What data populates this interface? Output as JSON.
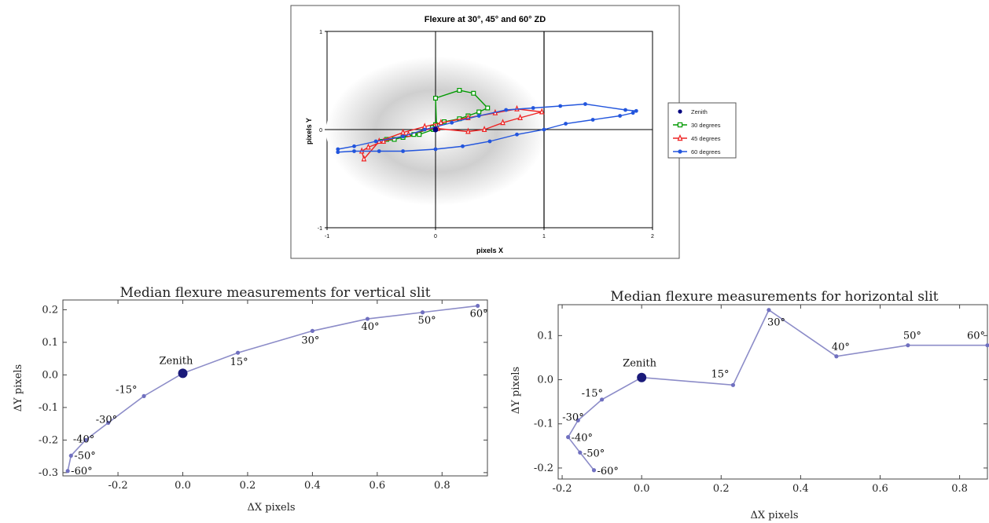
{
  "chart_data": [
    {
      "type": "line",
      "title": "Flexure at 30°, 45° and 60° ZD",
      "xlabel": "pixels X",
      "ylabel": "pixels Y",
      "xlim": [
        -1,
        2
      ],
      "ylim": [
        -1,
        1
      ],
      "xticks": [
        "-1",
        "0",
        "1",
        "2"
      ],
      "yticks": [
        "-1",
        "0",
        "1"
      ],
      "legend_position": "right",
      "series": [
        {
          "name": "Zenith",
          "color": "#00007f",
          "marker": "circle",
          "x": [
            0.0
          ],
          "y": [
            0.0
          ]
        },
        {
          "name": "30 degrees",
          "color": "#009900",
          "marker": "square",
          "x": [
            -0.02,
            -0.15,
            -0.3,
            -0.45,
            -0.5,
            -0.38,
            -0.2,
            -0.03,
            0.0,
            0.08,
            0.22,
            0.3,
            0.4,
            0.48,
            0.35,
            0.22,
            0.0,
            0.01
          ],
          "y": [
            0.0,
            -0.05,
            -0.08,
            -0.1,
            -0.12,
            -0.1,
            -0.05,
            0.02,
            0.05,
            0.08,
            0.11,
            0.14,
            0.18,
            0.22,
            0.37,
            0.4,
            0.32,
            0.01
          ]
        },
        {
          "name": "45 degrees",
          "color": "#ee2222",
          "marker": "triangle",
          "x": [
            0.0,
            -0.25,
            -0.48,
            -0.62,
            -0.68,
            -0.66,
            -0.52,
            -0.3,
            -0.1,
            0.05,
            0.3,
            0.55,
            0.75,
            0.98,
            0.78,
            0.62,
            0.45,
            0.3,
            0.02
          ],
          "y": [
            0.02,
            -0.05,
            -0.12,
            -0.18,
            -0.22,
            -0.3,
            -0.12,
            -0.03,
            0.03,
            0.07,
            0.12,
            0.17,
            0.21,
            0.18,
            0.12,
            0.07,
            0.0,
            -0.02,
            0.01
          ]
        },
        {
          "name": "60 degrees",
          "color": "#2255dd",
          "marker": "circle",
          "x": [
            -0.9,
            -0.75,
            -0.52,
            -0.3,
            0.0,
            0.25,
            0.5,
            0.75,
            1.0,
            1.2,
            1.45,
            1.7,
            1.82,
            1.85,
            1.75,
            1.38,
            1.15,
            0.9,
            0.65,
            0.4,
            0.15,
            -0.1,
            -0.3,
            -0.55,
            -0.75,
            -0.9
          ],
          "y": [
            -0.23,
            -0.22,
            -0.22,
            -0.22,
            -0.2,
            -0.17,
            -0.12,
            -0.05,
            0.0,
            0.06,
            0.1,
            0.14,
            0.17,
            0.19,
            0.2,
            0.26,
            0.24,
            0.22,
            0.2,
            0.14,
            0.07,
            0.0,
            -0.07,
            -0.12,
            -0.17,
            -0.2
          ]
        }
      ]
    },
    {
      "type": "line",
      "title": "Median flexure measurements for vertical slit",
      "xlabel": "ΔX pixels",
      "ylabel": "ΔY pixels",
      "xlim": [
        -0.37,
        0.94
      ],
      "ylim": [
        -0.31,
        0.23
      ],
      "xticks": [
        "-0.2",
        "0.0",
        "0.2",
        "0.4",
        "0.6",
        "0.8"
      ],
      "yticks": [
        "-0.3",
        "-0.2",
        "-0.1",
        "0.0",
        "0.1",
        "0.2"
      ],
      "points": [
        {
          "label": "-60°",
          "x": -0.355,
          "y": -0.295
        },
        {
          "label": "-50°",
          "x": -0.345,
          "y": -0.248
        },
        {
          "label": "-40°",
          "x": -0.3,
          "y": -0.2
        },
        {
          "label": "-30°",
          "x": -0.23,
          "y": -0.147
        },
        {
          "label": "-15°",
          "x": -0.12,
          "y": -0.065
        },
        {
          "label": "Zenith",
          "x": 0.0,
          "y": 0.005
        },
        {
          "label": "15°",
          "x": 0.17,
          "y": 0.068
        },
        {
          "label": "30°",
          "x": 0.4,
          "y": 0.135
        },
        {
          "label": "40°",
          "x": 0.57,
          "y": 0.172
        },
        {
          "label": "50°",
          "x": 0.74,
          "y": 0.192
        },
        {
          "label": "60°",
          "x": 0.91,
          "y": 0.212
        }
      ]
    },
    {
      "type": "line",
      "title": "Median flexure measurements for horizontal slit",
      "xlabel": "ΔX pixels",
      "ylabel": "ΔY pixels",
      "xlim": [
        -0.21,
        0.87
      ],
      "ylim": [
        -0.225,
        0.17
      ],
      "xticks": [
        "-0.2",
        "0.0",
        "0.2",
        "0.4",
        "0.6",
        "0.8"
      ],
      "yticks": [
        "-0.2",
        "-0.1",
        "0.0",
        "0.1"
      ],
      "points": [
        {
          "label": "-60°",
          "x": -0.12,
          "y": -0.205
        },
        {
          "label": "-50°",
          "x": -0.155,
          "y": -0.165
        },
        {
          "label": "-40°",
          "x": -0.185,
          "y": -0.13
        },
        {
          "label": "-30°",
          "x": -0.16,
          "y": -0.092
        },
        {
          "label": "-15°",
          "x": -0.1,
          "y": -0.045
        },
        {
          "label": "Zenith",
          "x": 0.0,
          "y": 0.005
        },
        {
          "label": "15°",
          "x": 0.23,
          "y": -0.012
        },
        {
          "label": "30°",
          "x": 0.32,
          "y": 0.158
        },
        {
          "label": "40°",
          "x": 0.49,
          "y": 0.053
        },
        {
          "label": "50°",
          "x": 0.67,
          "y": 0.078
        },
        {
          "label": "60°",
          "x": 0.87,
          "y": 0.078
        }
      ]
    }
  ]
}
